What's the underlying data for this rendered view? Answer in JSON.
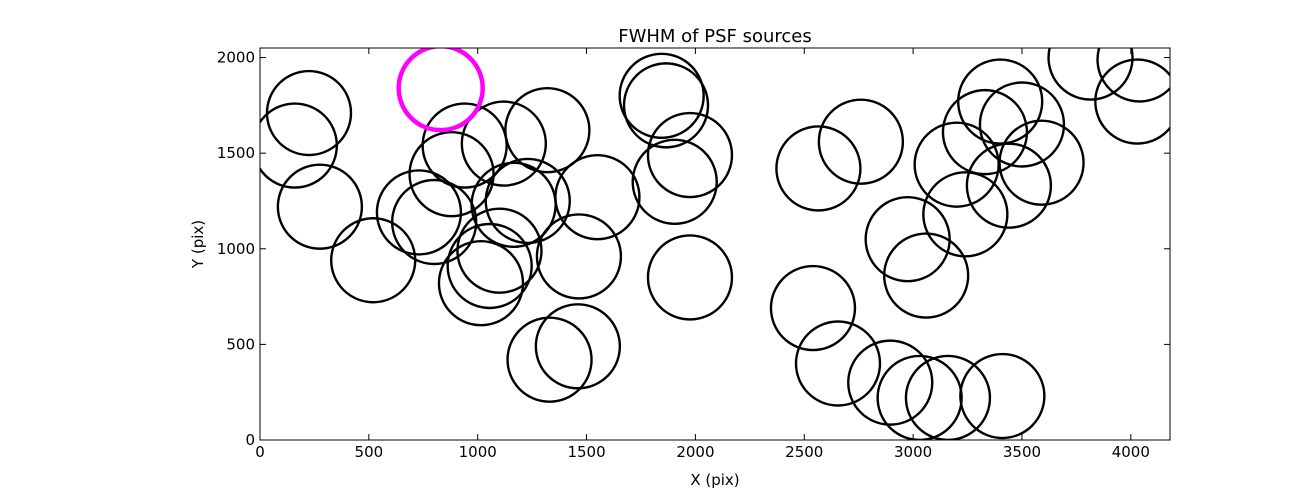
{
  "chart_data": {
    "type": "scatter",
    "marker": "open-circle",
    "title": "FWHM of PSF sources",
    "xlabel": "X (pix)",
    "ylabel": "Y (pix)",
    "xlim": [
      0,
      4180
    ],
    "ylim": [
      0,
      2050
    ],
    "xticks": [
      0,
      500,
      1000,
      1500,
      2000,
      2500,
      3000,
      3500,
      4000
    ],
    "yticks": [
      0,
      500,
      1000,
      1500,
      2000
    ],
    "grid": false,
    "marker_color": "#000000",
    "highlight_color": "#ff00ff",
    "series": [
      {
        "x": [
          160,
          225,
          275,
          520,
          730,
          800,
          880,
          940,
          1015,
          1055,
          1100,
          1120,
          1165,
          1230,
          1320,
          1330,
          1460,
          1465,
          1550,
          1845,
          1865,
          1905,
          1975,
          1975,
          2540,
          2565,
          2655,
          2760,
          2895,
          2975,
          3030,
          3060,
          3160,
          3200,
          3240,
          3330,
          3400,
          3410,
          3440,
          3500,
          3590,
          3815,
          4040,
          4030
        ],
        "y": [
          1540,
          1710,
          1220,
          940,
          1190,
          1140,
          1390,
          1540,
          820,
          910,
          990,
          1550,
          1230,
          1250,
          1620,
          420,
          490,
          960,
          1270,
          1800,
          1750,
          1350,
          1490,
          850,
          690,
          1420,
          400,
          1560,
          300,
          1050,
          220,
          860,
          220,
          1440,
          1180,
          1610,
          1770,
          230,
          1330,
          1650,
          1450,
          2000,
          1990,
          1770
        ]
      },
      {
        "name": "highlighted",
        "x": [
          830
        ],
        "y": [
          1840
        ]
      }
    ]
  }
}
